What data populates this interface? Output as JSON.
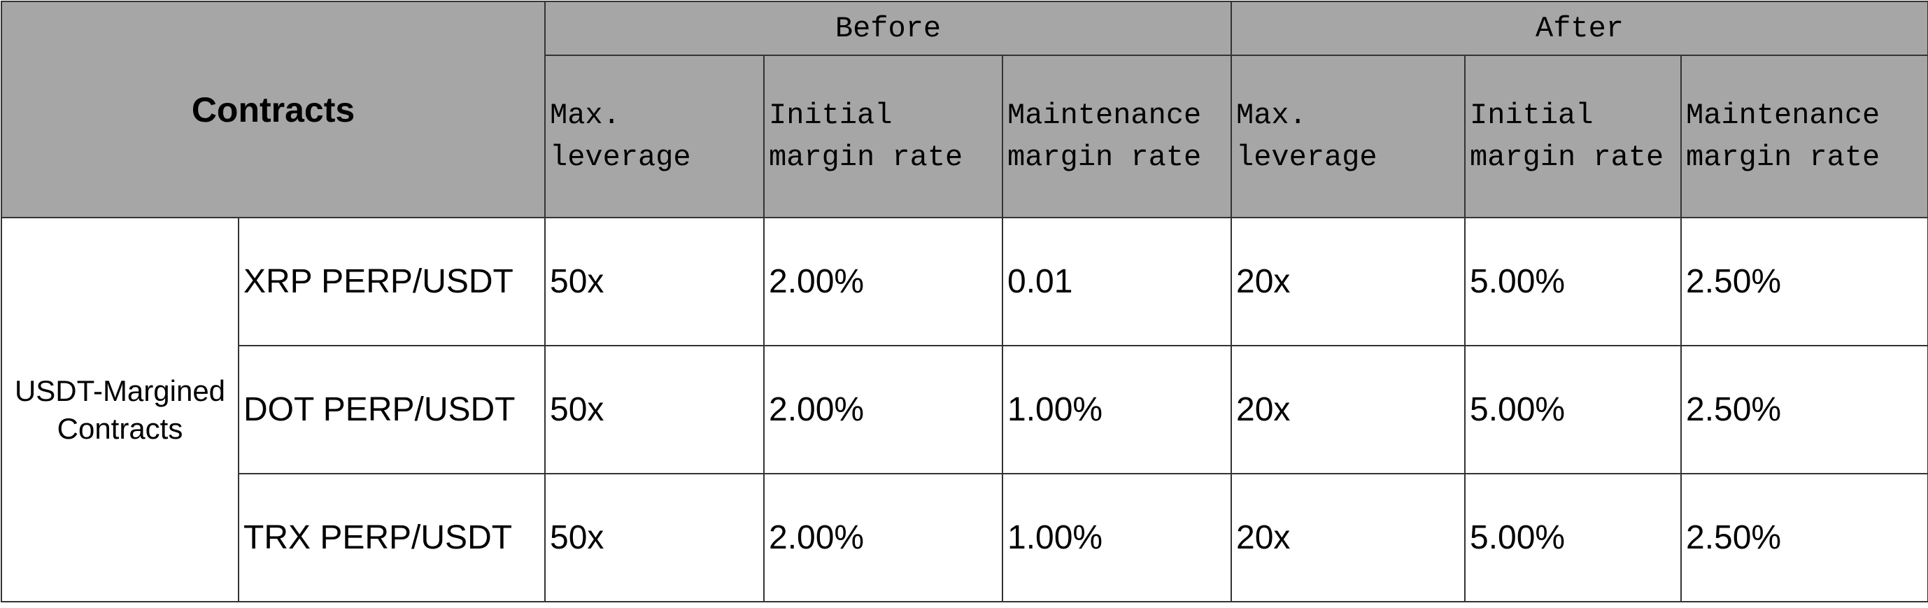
{
  "header": {
    "contracts": "Contracts",
    "groups": [
      "Before",
      "After"
    ],
    "columns": [
      "Max. leverage",
      "Initial margin rate",
      "Maintenance margin rate",
      "Max. leverage",
      "Initial margin rate",
      "Maintenance margin rate"
    ]
  },
  "table": {
    "group": "USDT-Margined Contracts",
    "rows": [
      [
        "XRP PERP/USDT",
        "50x",
        "2.00%",
        "0.01",
        "20x",
        "5.00%",
        "2.50%"
      ],
      [
        "DOT PERP/USDT",
        "50x",
        "2.00%",
        "1.00%",
        "20x",
        "5.00%",
        "2.50%"
      ],
      [
        "TRX PERP/USDT",
        "50x",
        "2.00%",
        "1.00%",
        "20x",
        "5.00%",
        "2.50%"
      ]
    ]
  }
}
